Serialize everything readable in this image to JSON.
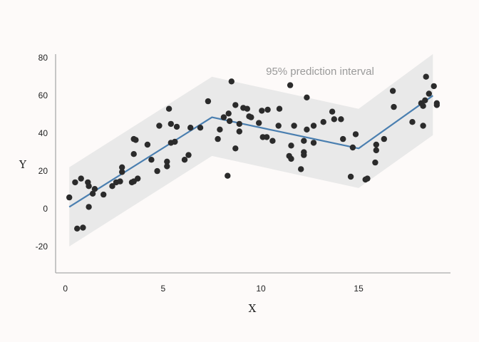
{
  "chart_data": {
    "type": "scatter",
    "title": "",
    "xlabel": "X",
    "ylabel": "Y",
    "xlim": [
      -0.5,
      19.7
    ],
    "ylim": [
      -34,
      85
    ],
    "xticks": [
      0,
      5,
      10,
      15
    ],
    "yticks": [
      -20,
      0,
      20,
      40,
      60,
      80
    ],
    "grid": false,
    "annotation": "95% prediction interval",
    "colors": {
      "points": "#2b2b2b",
      "fit_line": "#4a7fb0",
      "band": "#e9e9e9",
      "axis": "#aaaaaa",
      "background": "#fdfaf9"
    },
    "fit": {
      "name": "",
      "x": [
        0.2,
        7.5,
        15.0,
        18.8
      ],
      "y": [
        1,
        48.5,
        32,
        60
      ]
    },
    "prediction_interval": {
      "x": [
        0.2,
        7.5,
        15.0,
        18.8
      ],
      "lower": [
        -20,
        28,
        11,
        39
      ],
      "upper": [
        22,
        70,
        53,
        82
      ]
    },
    "points": [
      {
        "x": 0.2,
        "y": 6
      },
      {
        "x": 0.5,
        "y": 14
      },
      {
        "x": 0.6,
        "y": -10.5
      },
      {
        "x": 0.8,
        "y": 16
      },
      {
        "x": 0.9,
        "y": -10
      },
      {
        "x": 1.15,
        "y": 14
      },
      {
        "x": 1.2,
        "y": 12
      },
      {
        "x": 1.2,
        "y": 1
      },
      {
        "x": 1.4,
        "y": 8
      },
      {
        "x": 1.5,
        "y": 10.5
      },
      {
        "x": 1.95,
        "y": 7.5
      },
      {
        "x": 2.4,
        "y": 12
      },
      {
        "x": 2.6,
        "y": 14
      },
      {
        "x": 2.8,
        "y": 14.5
      },
      {
        "x": 2.9,
        "y": 19.5
      },
      {
        "x": 2.9,
        "y": 22
      },
      {
        "x": 3.4,
        "y": 14
      },
      {
        "x": 3.5,
        "y": 14.5
      },
      {
        "x": 3.5,
        "y": 29
      },
      {
        "x": 3.5,
        "y": 37
      },
      {
        "x": 3.6,
        "y": 36.5
      },
      {
        "x": 3.7,
        "y": 16
      },
      {
        "x": 4.2,
        "y": 34
      },
      {
        "x": 4.4,
        "y": 26
      },
      {
        "x": 4.7,
        "y": 20
      },
      {
        "x": 4.8,
        "y": 44
      },
      {
        "x": 5.2,
        "y": 25
      },
      {
        "x": 5.2,
        "y": 22.5
      },
      {
        "x": 5.3,
        "y": 53
      },
      {
        "x": 5.4,
        "y": 35
      },
      {
        "x": 5.4,
        "y": 45
      },
      {
        "x": 5.6,
        "y": 35.5
      },
      {
        "x": 5.7,
        "y": 43.5
      },
      {
        "x": 6.1,
        "y": 26
      },
      {
        "x": 6.3,
        "y": 28.5
      },
      {
        "x": 6.4,
        "y": 43
      },
      {
        "x": 6.9,
        "y": 43
      },
      {
        "x": 7.3,
        "y": 57
      },
      {
        "x": 7.8,
        "y": 37
      },
      {
        "x": 7.9,
        "y": 42
      },
      {
        "x": 8.1,
        "y": 48.5
      },
      {
        "x": 8.3,
        "y": 17.5
      },
      {
        "x": 8.35,
        "y": 50.5
      },
      {
        "x": 8.4,
        "y": 46.5
      },
      {
        "x": 8.5,
        "y": 67.5
      },
      {
        "x": 8.7,
        "y": 55
      },
      {
        "x": 8.7,
        "y": 32
      },
      {
        "x": 8.9,
        "y": 45
      },
      {
        "x": 8.9,
        "y": 41
      },
      {
        "x": 9.1,
        "y": 53.5
      },
      {
        "x": 9.3,
        "y": 53
      },
      {
        "x": 9.4,
        "y": 49
      },
      {
        "x": 9.5,
        "y": 48.5
      },
      {
        "x": 9.9,
        "y": 45.5
      },
      {
        "x": 10.05,
        "y": 52
      },
      {
        "x": 10.1,
        "y": 38
      },
      {
        "x": 10.3,
        "y": 38
      },
      {
        "x": 10.35,
        "y": 52.5
      },
      {
        "x": 10.6,
        "y": 36
      },
      {
        "x": 10.9,
        "y": 44
      },
      {
        "x": 10.95,
        "y": 53
      },
      {
        "x": 11.45,
        "y": 28
      },
      {
        "x": 11.5,
        "y": 65.5
      },
      {
        "x": 11.55,
        "y": 33.5
      },
      {
        "x": 11.55,
        "y": 26.5
      },
      {
        "x": 11.7,
        "y": 44
      },
      {
        "x": 12.05,
        "y": 21
      },
      {
        "x": 12.2,
        "y": 30
      },
      {
        "x": 12.2,
        "y": 28.5
      },
      {
        "x": 12.2,
        "y": 36
      },
      {
        "x": 12.35,
        "y": 42
      },
      {
        "x": 12.35,
        "y": 59
      },
      {
        "x": 12.7,
        "y": 44
      },
      {
        "x": 12.7,
        "y": 35
      },
      {
        "x": 13.2,
        "y": 46
      },
      {
        "x": 13.65,
        "y": 51.5
      },
      {
        "x": 13.75,
        "y": 47.5
      },
      {
        "x": 14.1,
        "y": 47.5
      },
      {
        "x": 14.2,
        "y": 37
      },
      {
        "x": 14.6,
        "y": 17
      },
      {
        "x": 14.7,
        "y": 32.5
      },
      {
        "x": 14.85,
        "y": 39.5
      },
      {
        "x": 15.35,
        "y": 15.5
      },
      {
        "x": 15.45,
        "y": 16
      },
      {
        "x": 15.85,
        "y": 24.5
      },
      {
        "x": 15.9,
        "y": 31
      },
      {
        "x": 15.9,
        "y": 34
      },
      {
        "x": 16.3,
        "y": 37
      },
      {
        "x": 16.75,
        "y": 62.5
      },
      {
        "x": 16.8,
        "y": 54
      },
      {
        "x": 17.75,
        "y": 46
      },
      {
        "x": 18.2,
        "y": 56
      },
      {
        "x": 18.3,
        "y": 44
      },
      {
        "x": 18.3,
        "y": 54.5
      },
      {
        "x": 18.4,
        "y": 57.5
      },
      {
        "x": 18.45,
        "y": 70
      },
      {
        "x": 18.6,
        "y": 61
      },
      {
        "x": 18.85,
        "y": 65
      },
      {
        "x": 19.0,
        "y": 56
      },
      {
        "x": 19.0,
        "y": 55
      }
    ]
  }
}
